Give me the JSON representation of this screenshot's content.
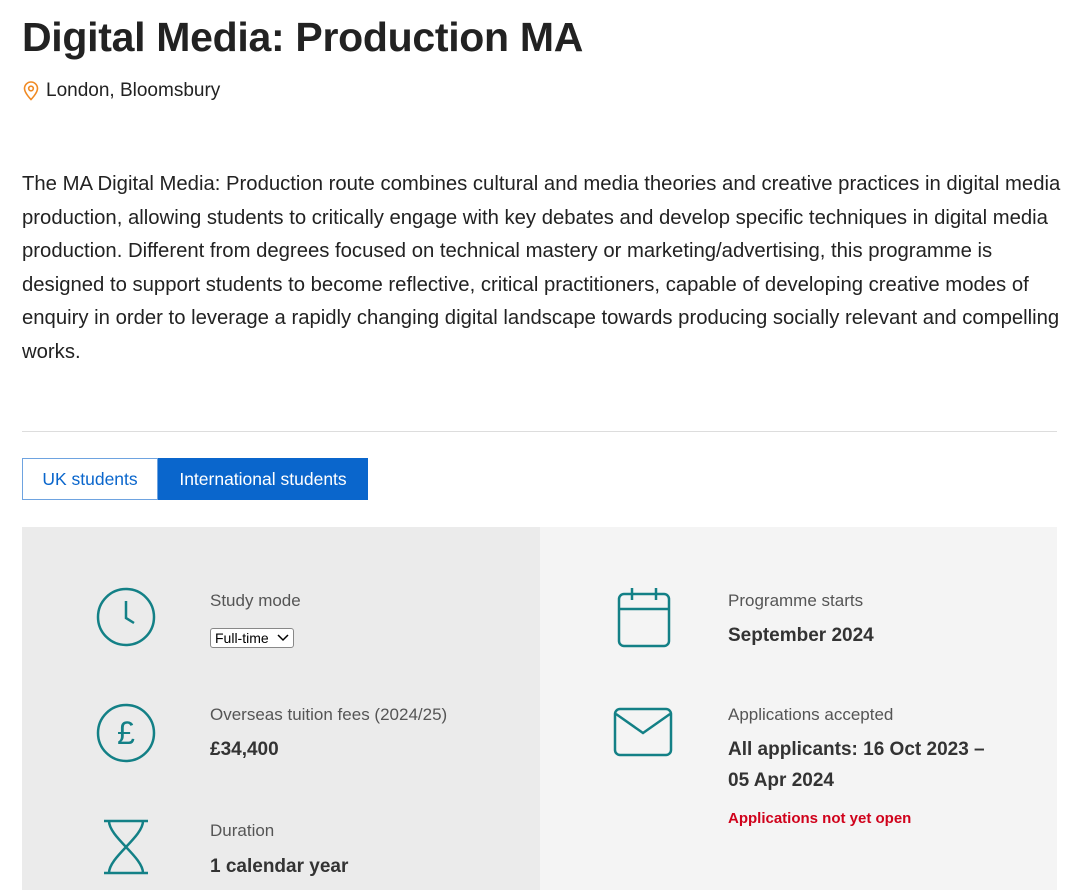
{
  "title": "Digital Media: Production MA",
  "location": "London, Bloomsbury",
  "description": "The MA Digital Media: Production route combines cultural and media theories and creative practices in digital media production, allowing students to critically engage with key debates and develop specific techniques in digital media production. Different from degrees focused on technical mastery or marketing/advertising, this programme is designed to support students to become reflective, critical practitioners, capable of developing creative modes of enquiry in order to leverage a rapidly changing digital landscape towards producing socially relevant and compelling works.",
  "tabs": [
    {
      "label": "UK students",
      "active": false
    },
    {
      "label": "International students",
      "active": true
    }
  ],
  "colors": {
    "accent": "#0a66cc",
    "icon": "#138086",
    "warning": "#d0021b",
    "location_icon": "#f08a24"
  },
  "facts": {
    "study_mode": {
      "label": "Study mode",
      "value": "Full-time",
      "icon": "clock-icon"
    },
    "fees": {
      "label": "Overseas tuition fees (2024/25)",
      "value": "£34,400",
      "icon": "pound-icon"
    },
    "duration": {
      "label": "Duration",
      "value": "1 calendar year",
      "icon": "hourglass-icon"
    },
    "starts": {
      "label": "Programme starts",
      "value": "September 2024",
      "icon": "calendar-icon"
    },
    "applications": {
      "label": "Applications accepted",
      "value_line1": "All applicants: 16 Oct 2023 –",
      "value_line2": "05 Apr 2024",
      "status": "Applications not yet open",
      "icon": "envelope-icon"
    }
  }
}
